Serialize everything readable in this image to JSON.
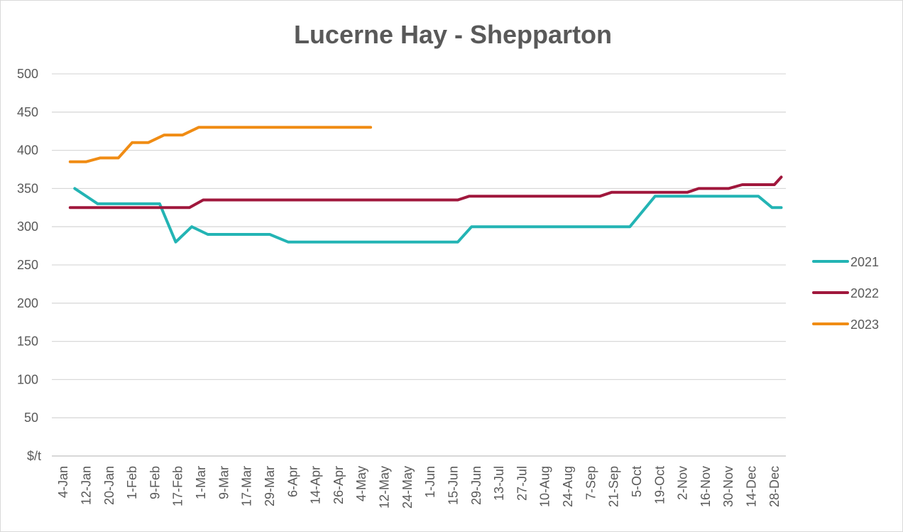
{
  "chart_data": {
    "type": "line",
    "title": "Lucerne Hay - Shepparton",
    "ylabel": "$/t",
    "ylim": [
      0,
      500
    ],
    "y_ticks": [
      "500",
      "450",
      "400",
      "350",
      "300",
      "250",
      "200",
      "150",
      "100",
      "50"
    ],
    "categories": [
      "4-Jan",
      "12-Jan",
      "20-Jan",
      "1-Feb",
      "9-Feb",
      "17-Feb",
      "1-Mar",
      "9-Mar",
      "17-Mar",
      "29-Mar",
      "6-Apr",
      "14-Apr",
      "26-Apr",
      "4-May",
      "12-May",
      "24-May",
      "1-Jun",
      "15-Jun",
      "29-Jun",
      "13-Jul",
      "27-Jul",
      "10-Aug",
      "24-Aug",
      "7-Sep",
      "21-Sep",
      "5-Oct",
      "19-Oct",
      "2-Nov",
      "16-Nov",
      "30-Nov",
      "14-Dec",
      "28-Dec"
    ],
    "grid": true,
    "legend_position": "right",
    "series": [
      {
        "name": "2021",
        "color": "#23b4b4",
        "points": [
          [
            0.5,
            350
          ],
          [
            1.5,
            330
          ],
          [
            2.5,
            330
          ],
          [
            3.5,
            330
          ],
          [
            4.2,
            330
          ],
          [
            4.9,
            280
          ],
          [
            5.6,
            300
          ],
          [
            6.3,
            290
          ],
          [
            7.0,
            290
          ],
          [
            8.0,
            290
          ],
          [
            9.0,
            290
          ],
          [
            9.8,
            280
          ],
          [
            11.0,
            280
          ],
          [
            13.0,
            280
          ],
          [
            15.0,
            280
          ],
          [
            17.2,
            280
          ],
          [
            17.8,
            300
          ],
          [
            19.0,
            300
          ],
          [
            21.0,
            300
          ],
          [
            23.0,
            300
          ],
          [
            24.0,
            300
          ],
          [
            24.7,
            300
          ],
          [
            25.8,
            340
          ],
          [
            27.0,
            340
          ],
          [
            29.0,
            340
          ],
          [
            30.3,
            340
          ],
          [
            30.9,
            325
          ],
          [
            31.3,
            325
          ]
        ]
      },
      {
        "name": "2022",
        "color": "#a0173c",
        "points": [
          [
            0.3,
            325
          ],
          [
            2.0,
            325
          ],
          [
            4.0,
            325
          ],
          [
            5.5,
            325
          ],
          [
            6.1,
            335
          ],
          [
            8.0,
            335
          ],
          [
            12.0,
            335
          ],
          [
            16.0,
            335
          ],
          [
            17.2,
            335
          ],
          [
            17.7,
            340
          ],
          [
            20.0,
            340
          ],
          [
            23.0,
            340
          ],
          [
            23.4,
            340
          ],
          [
            23.9,
            345
          ],
          [
            26.0,
            345
          ],
          [
            27.2,
            345
          ],
          [
            27.7,
            350
          ],
          [
            29.0,
            350
          ],
          [
            29.6,
            355
          ],
          [
            31.0,
            355
          ],
          [
            31.3,
            365
          ]
        ]
      },
      {
        "name": "2023",
        "color": "#f08c14",
        "points": [
          [
            0.3,
            385
          ],
          [
            1.0,
            385
          ],
          [
            1.6,
            390
          ],
          [
            2.4,
            390
          ],
          [
            3.0,
            410
          ],
          [
            3.7,
            410
          ],
          [
            4.4,
            420
          ],
          [
            5.2,
            420
          ],
          [
            5.9,
            430
          ],
          [
            7.0,
            430
          ],
          [
            10.0,
            430
          ],
          [
            13.4,
            430
          ]
        ]
      }
    ]
  }
}
